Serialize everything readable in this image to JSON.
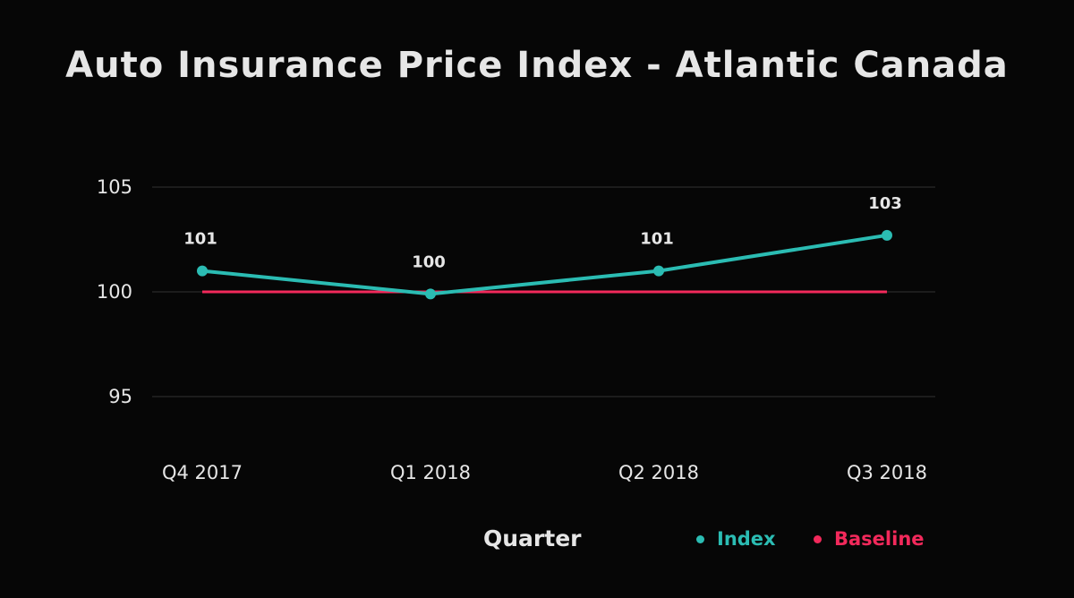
{
  "colors": {
    "background": "#060606",
    "text": "#e6e6e6",
    "grid": "#333333",
    "index": "#2bbcb3",
    "baseline": "#f2295b"
  },
  "chart_data": {
    "type": "line",
    "title": "Auto Insurance Price Index - Atlantic Canada",
    "xlabel": "Quarter",
    "ylabel": "",
    "categories": [
      "Q4 2017",
      "Q1 2018",
      "Q2 2018",
      "Q3 2018"
    ],
    "yticks": [
      "95",
      "100",
      "105"
    ],
    "ytick_values": [
      95,
      100,
      105
    ],
    "ylim": [
      92,
      108
    ],
    "grid": true,
    "legend_position": "bottom-right",
    "series": [
      {
        "name": "Index",
        "color": "#2bbcb3",
        "values": [
          101,
          99.9,
          101,
          102.7
        ],
        "labels": [
          "101",
          "100",
          "101",
          "103"
        ],
        "markers": true
      },
      {
        "name": "Baseline",
        "color": "#f2295b",
        "values": [
          100,
          100,
          100,
          100
        ],
        "markers": false
      }
    ]
  }
}
